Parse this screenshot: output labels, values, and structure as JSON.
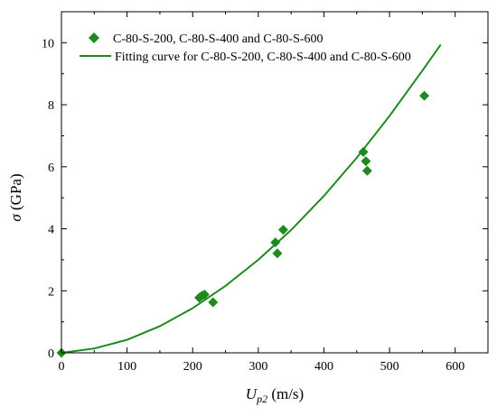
{
  "chart_data": {
    "type": "scatter",
    "xlabel_main": "U",
    "xlabel_sub": "p2",
    "xlabel_unit": " (m/s)",
    "ylabel_main": "σ",
    "ylabel_unit": " (GPa)",
    "xlim": [
      0,
      650
    ],
    "ylim": [
      0,
      11
    ],
    "xticks": [
      0,
      100,
      200,
      300,
      400,
      500,
      600
    ],
    "yticks": [
      0,
      2,
      4,
      6,
      8,
      10
    ],
    "grid": false,
    "legend_position": "top-left",
    "series": [
      {
        "name": "C-80-S-200, C-80-S-400 and C-80-S-600",
        "kind": "scatter",
        "marker": "diamond",
        "color": "#1e8a1e",
        "points": [
          {
            "x": 0,
            "y": 0
          },
          {
            "x": 210,
            "y": 1.78
          },
          {
            "x": 214,
            "y": 1.84
          },
          {
            "x": 218,
            "y": 1.88
          },
          {
            "x": 231,
            "y": 1.63
          },
          {
            "x": 326,
            "y": 3.56
          },
          {
            "x": 329,
            "y": 3.21
          },
          {
            "x": 338,
            "y": 3.97
          },
          {
            "x": 460,
            "y": 6.48
          },
          {
            "x": 464,
            "y": 6.18
          },
          {
            "x": 466,
            "y": 5.87
          },
          {
            "x": 553,
            "y": 8.29
          }
        ]
      },
      {
        "name": "Fitting curve for C-80-S-200, C-80-S-400 and C-80-S-600",
        "kind": "line",
        "color": "#1e8a1e",
        "points": [
          {
            "x": 0,
            "y": 0
          },
          {
            "x": 50,
            "y": 0.14
          },
          {
            "x": 100,
            "y": 0.42
          },
          {
            "x": 150,
            "y": 0.86
          },
          {
            "x": 200,
            "y": 1.44
          },
          {
            "x": 250,
            "y": 2.16
          },
          {
            "x": 300,
            "y": 3.0
          },
          {
            "x": 350,
            "y": 3.96
          },
          {
            "x": 400,
            "y": 5.06
          },
          {
            "x": 450,
            "y": 6.29
          },
          {
            "x": 500,
            "y": 7.64
          },
          {
            "x": 550,
            "y": 9.1
          },
          {
            "x": 578,
            "y": 9.94
          }
        ]
      }
    ]
  }
}
